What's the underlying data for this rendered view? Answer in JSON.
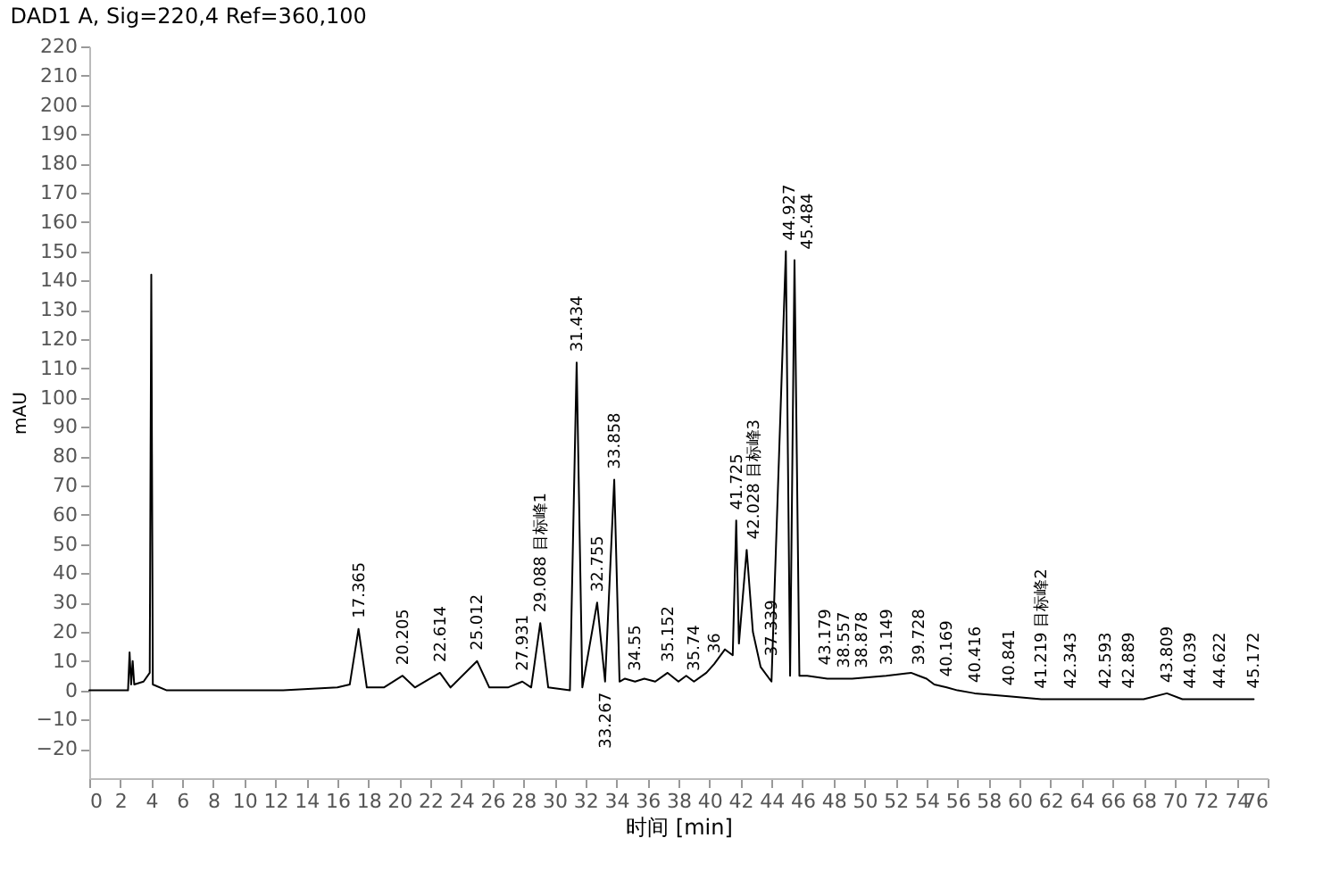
{
  "chart_data": {
    "type": "line",
    "title": "DAD1 A, Sig=220,4 Ref=360,100",
    "xlabel": "时间 [min]",
    "ylabel": "mAU",
    "xlim": [
      0,
      76
    ],
    "xticks": [
      0,
      2,
      4,
      6,
      8,
      10,
      12,
      14,
      16,
      18,
      20,
      22,
      24,
      26,
      28,
      30,
      32,
      34,
      36,
      38,
      40,
      42,
      44,
      46,
      48,
      50,
      52,
      54,
      56,
      58,
      60,
      62,
      64,
      66,
      68,
      70,
      72,
      74,
      76
    ],
    "ylim": [
      -30,
      220
    ],
    "yticks": [
      -20,
      -10,
      0,
      10,
      20,
      30,
      40,
      50,
      60,
      70,
      80,
      90,
      100,
      110,
      120,
      130,
      140,
      150,
      160,
      170,
      180,
      190,
      200,
      210,
      220
    ],
    "grid": false,
    "marker": "none",
    "line_style": "solid",
    "series": [
      {
        "color": "#000000",
        "x": [
          0,
          2.5,
          2.6,
          2.7,
          2.8,
          2.9,
          3.5,
          3.9,
          4.0,
          4.1,
          5,
          12.5,
          16,
          16.8,
          17.365,
          17.9,
          19,
          20.205,
          21,
          22.614,
          23.3,
          25.012,
          25.8,
          27,
          27.931,
          28.5,
          29.088,
          29.6,
          31,
          31.434,
          31.8,
          32.755,
          33.267,
          33.858,
          34.2,
          34.55,
          35.2,
          35.8,
          36.5,
          37.3,
          38,
          38.5,
          39,
          39.8,
          40.3,
          41,
          41.5,
          41.725,
          41.9,
          42.4,
          42.8,
          43.3,
          44,
          44.927,
          45.2,
          45.484,
          45.8,
          46.3,
          47.6,
          49.2,
          51.4,
          53,
          53.5,
          54,
          54.5,
          55.3,
          56,
          57.1,
          59.3,
          61.4,
          63.3,
          65.5,
          67,
          68,
          69.5,
          70.5,
          71,
          72.9,
          75.1
        ],
        "values": [
          0,
          0,
          13,
          2,
          10,
          2,
          3,
          6,
          142,
          2,
          0,
          0,
          1,
          2,
          21,
          1,
          1,
          5,
          1,
          6,
          1,
          10,
          1,
          1,
          3,
          1,
          23,
          1,
          0,
          112,
          1,
          30,
          3,
          72,
          3,
          4,
          3,
          4,
          3,
          6,
          3,
          5,
          3,
          6,
          9,
          14,
          12,
          58,
          16,
          48,
          20,
          8,
          3,
          150,
          5,
          147,
          5,
          5,
          4,
          4,
          5,
          6,
          5,
          4,
          2,
          1,
          0,
          -1,
          -2,
          -3,
          -3,
          -3,
          -3,
          -3,
          -1,
          -3,
          -3,
          -3,
          -3
        ]
      }
    ],
    "annotations": [
      {
        "text": "17.365",
        "x": 17.365,
        "y": 21
      },
      {
        "text": "20.205",
        "x": 20.205,
        "y": 5
      },
      {
        "text": "22.614",
        "x": 22.614,
        "y": 6
      },
      {
        "text": "25.012",
        "x": 25.012,
        "y": 10
      },
      {
        "text": "27.931",
        "x": 27.931,
        "y": 3
      },
      {
        "text": "29.088 目标峰1",
        "x": 29.088,
        "y": 23
      },
      {
        "text": "31.434",
        "x": 31.434,
        "y": 112
      },
      {
        "text": "32.755",
        "x": 32.755,
        "y": 30
      },
      {
        "text": "33.267",
        "x": 33.267,
        "y": 3
      },
      {
        "text": "33.858",
        "x": 33.858,
        "y": 72
      },
      {
        "text": "34.55",
        "x": 35.2,
        "y": 3
      },
      {
        "text": "35.152",
        "x": 37.3,
        "y": 6
      },
      {
        "text": "35.74",
        "x": 39,
        "y": 3
      },
      {
        "text": "36",
        "x": 40.3,
        "y": 9
      },
      {
        "text": "41.725",
        "x": 41.725,
        "y": 58
      },
      {
        "text": "42.028 目标峰3",
        "x": 42.4,
        "y": 48
      },
      {
        "text": "37.339",
        "x": 43.3,
        "y": 8
      },
      {
        "text": "44.927",
        "x": 44.927,
        "y": 150
      },
      {
        "text": "45.484",
        "x": 45.484,
        "y": 147
      },
      {
        "text": "43.179",
        "x": 46.3,
        "y": 5
      },
      {
        "text": "38.557",
        "x": 47.6,
        "y": 4
      },
      {
        "text": "38.878",
        "x": 49.2,
        "y": 4
      },
      {
        "text": "39.149",
        "x": 51.4,
        "y": 5
      },
      {
        "text": "39.728",
        "x": 53.5,
        "y": 5
      },
      {
        "text": "40.169",
        "x": 55.3,
        "y": 1
      },
      {
        "text": "40.416",
        "x": 57.1,
        "y": -1
      },
      {
        "text": "40.841",
        "x": 59.3,
        "y": -2
      },
      {
        "text": "41.219 目标峰2",
        "x": 61.4,
        "y": -3
      },
      {
        "text": "42.343",
        "x": 63.3,
        "y": -3
      },
      {
        "text": "42.593",
        "x": 65.5,
        "y": -3
      },
      {
        "text": "42.889",
        "x": 67,
        "y": -3
      },
      {
        "text": "43.809",
        "x": 69.5,
        "y": -1
      },
      {
        "text": "44.039",
        "x": 71,
        "y": -3
      },
      {
        "text": "44.622",
        "x": 72.9,
        "y": -3
      },
      {
        "text": "45.172",
        "x": 75.1,
        "y": -3
      }
    ]
  }
}
